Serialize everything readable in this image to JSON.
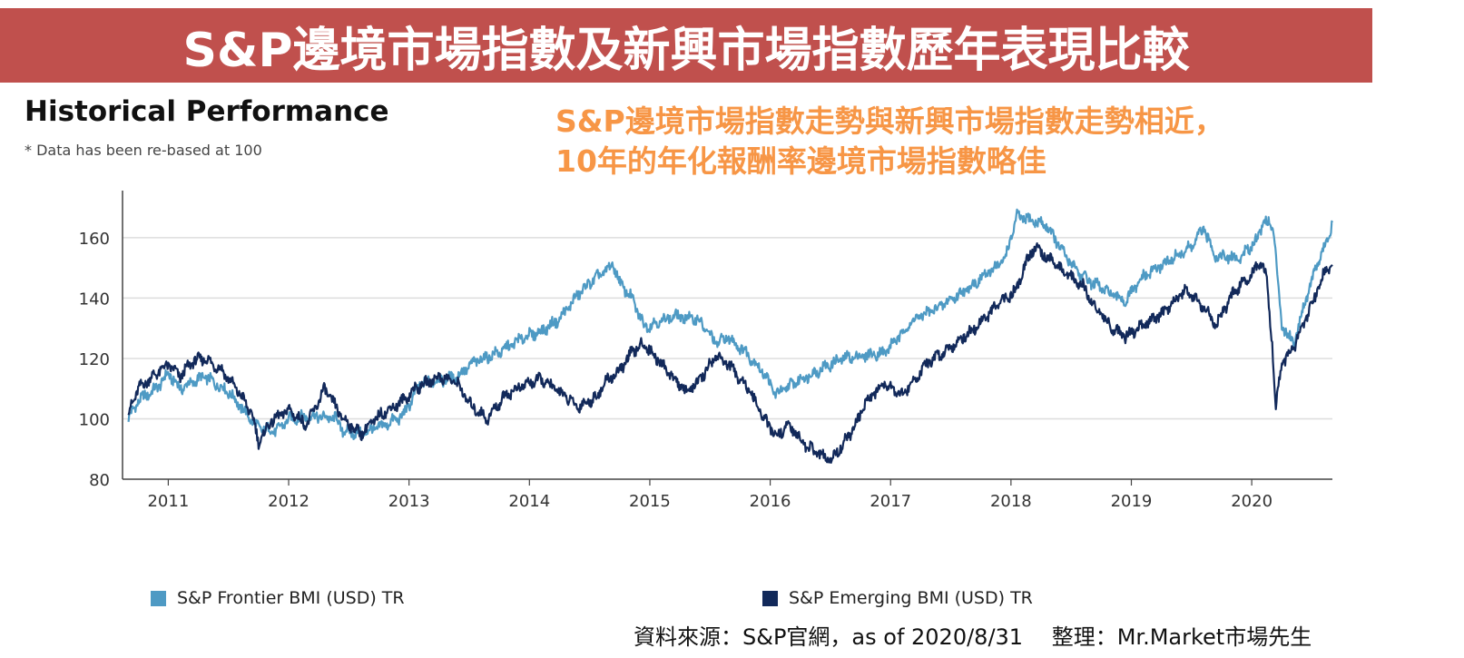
{
  "header": {
    "title": "S&P邊境市場指數及新興市場指數歷年表現比較"
  },
  "subheader": {
    "title": "Historical Performance",
    "note": "* Data has been re-based at 100"
  },
  "annotation": {
    "line1": "S&P邊境市場指數走勢與新興市場指數走勢相近，",
    "line2": "10年的年化報酬率邊境市場指數略佳"
  },
  "colors": {
    "banner": "#c0504d",
    "annotation": "#f79646",
    "frontier": "#4e9ac4",
    "emerging": "#12295a"
  },
  "footer": {
    "source": "資料來源：S&P官網，as of 2020/8/31　 整理：Mr.Market市場先生"
  },
  "chart_data": {
    "type": "line",
    "title": "Historical Performance",
    "subtitle": "* Data has been re-based at 100",
    "xlabel": "",
    "ylabel": "",
    "xlim": [
      2010.62,
      2020.67
    ],
    "ylim": [
      80,
      175
    ],
    "yticks": [
      80,
      100,
      120,
      140,
      160
    ],
    "xticks": [
      2011,
      2012,
      2013,
      2014,
      2015,
      2016,
      2017,
      2018,
      2019,
      2020
    ],
    "grid": "horizontal",
    "legend": "bottom",
    "series": [
      {
        "name": "S&P Frontier BMI (USD) TR",
        "color": "#4e9ac4",
        "x": [
          2010.67,
          2010.75,
          2010.9,
          2011.0,
          2011.1,
          2011.2,
          2011.3,
          2011.5,
          2011.6,
          2011.75,
          2011.9,
          2012.0,
          2012.2,
          2012.4,
          2012.45,
          2012.6,
          2012.8,
          2012.95,
          2013.1,
          2013.3,
          2013.4,
          2013.55,
          2013.75,
          2013.95,
          2014.1,
          2014.25,
          2014.4,
          2014.5,
          2014.6,
          2014.7,
          2014.75,
          2014.85,
          2014.95,
          2015.0,
          2015.2,
          2015.4,
          2015.55,
          2015.65,
          2015.8,
          2015.95,
          2016.05,
          2016.2,
          2016.4,
          2016.6,
          2016.8,
          2016.95,
          2017.2,
          2017.4,
          2017.6,
          2017.8,
          2017.95,
          2018.05,
          2018.15,
          2018.3,
          2018.45,
          2018.6,
          2018.8,
          2018.95,
          2019.1,
          2019.3,
          2019.5,
          2019.6,
          2019.7,
          2019.9,
          2020.05,
          2020.1,
          2020.18,
          2020.25,
          2020.35,
          2020.45,
          2020.55,
          2020.62,
          2020.67
        ],
        "values": [
          100,
          106,
          110,
          115,
          110,
          112,
          114,
          109,
          104,
          97,
          96,
          100,
          101,
          100,
          96,
          95,
          98,
          101,
          112,
          113,
          114,
          119,
          122,
          127,
          129,
          133,
          141,
          145,
          148,
          151,
          145,
          140,
          131,
          131,
          134,
          133,
          125,
          127,
          122,
          115,
          108,
          112,
          116,
          120,
          121,
          122,
          133,
          137,
          142,
          148,
          153,
          167,
          166,
          164,
          154,
          147,
          142,
          139,
          147,
          152,
          157,
          163,
          154,
          153,
          160,
          166,
          163,
          131,
          125,
          140,
          152,
          158,
          165
        ]
      },
      {
        "name": "S&P Emerging BMI (USD) TR",
        "color": "#12295a",
        "x": [
          2010.67,
          2010.75,
          2010.9,
          2011.0,
          2011.1,
          2011.2,
          2011.3,
          2011.45,
          2011.6,
          2011.7,
          2011.75,
          2011.85,
          2012.0,
          2012.15,
          2012.3,
          2012.45,
          2012.6,
          2012.75,
          2012.95,
          2013.05,
          2013.25,
          2013.4,
          2013.5,
          2013.65,
          2013.8,
          2014.0,
          2014.1,
          2014.25,
          2014.4,
          2014.55,
          2014.65,
          2014.75,
          2014.85,
          2014.95,
          2015.1,
          2015.3,
          2015.4,
          2015.55,
          2015.65,
          2015.8,
          2015.95,
          2016.05,
          2016.15,
          2016.3,
          2016.5,
          2016.7,
          2016.8,
          2016.95,
          2017.1,
          2017.3,
          2017.5,
          2017.7,
          2017.9,
          2018.05,
          2018.1,
          2018.2,
          2018.4,
          2018.6,
          2018.7,
          2018.85,
          2018.95,
          2019.1,
          2019.3,
          2019.45,
          2019.6,
          2019.7,
          2019.85,
          2020.0,
          2020.08,
          2020.12,
          2020.17,
          2020.2,
          2020.25,
          2020.35,
          2020.45,
          2020.55,
          2020.62,
          2020.67
        ],
        "values": [
          102,
          110,
          115,
          118,
          114,
          119,
          120,
          116,
          108,
          101,
          92,
          99,
          103,
          98,
          110,
          100,
          95,
          101,
          106,
          110,
          114,
          112,
          105,
          100,
          108,
          112,
          113,
          109,
          104,
          107,
          113,
          116,
          122,
          125,
          118,
          109,
          112,
          121,
          118,
          111,
          100,
          94,
          98,
          91,
          86,
          97,
          106,
          112,
          108,
          118,
          124,
          130,
          138,
          143,
          150,
          157,
          150,
          144,
          137,
          130,
          127,
          131,
          136,
          143,
          137,
          131,
          142,
          148,
          152,
          148,
          125,
          104,
          118,
          124,
          133,
          143,
          150,
          151
        ]
      }
    ]
  }
}
